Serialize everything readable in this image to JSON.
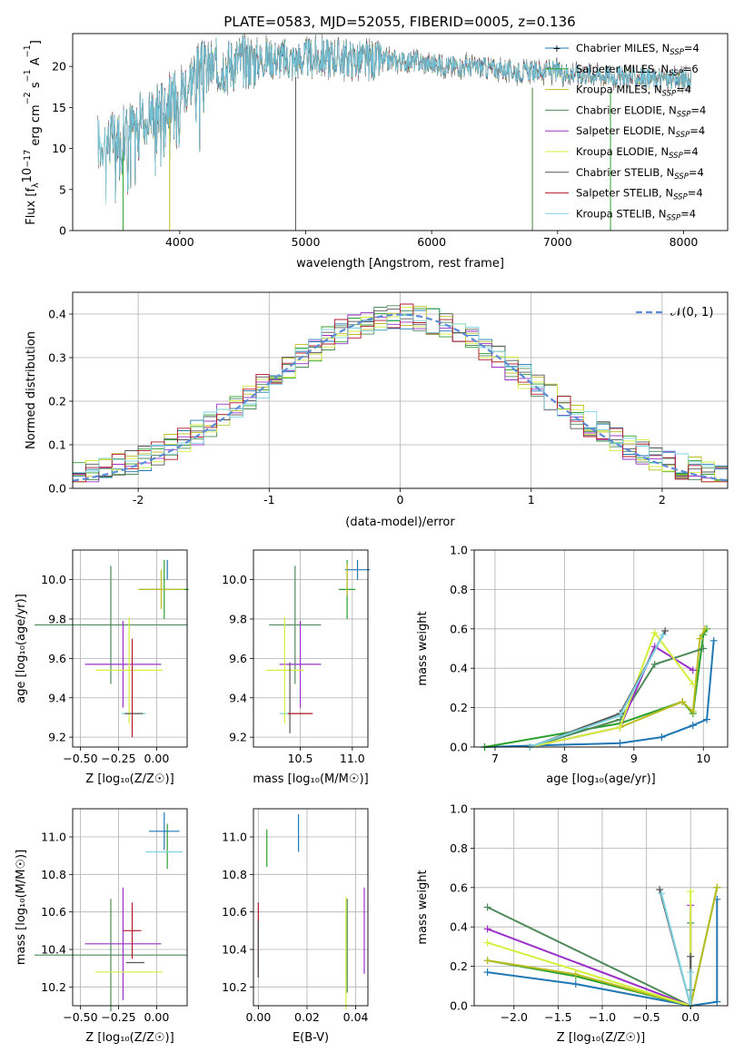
{
  "figure": {
    "title": "PLATE=0583, MJD=52055, FIBERID=0005, z=0.136"
  },
  "models": [
    {
      "name": "Chabrier MILES",
      "nssp": "4",
      "color": "#1f77b4"
    },
    {
      "name": "Salpeter MILES",
      "nssp": "6",
      "color": "#2ca02c"
    },
    {
      "name": "Kroupa MILES",
      "nssp": "4",
      "color": "#bcbd22"
    },
    {
      "name": "Chabrier ELODIE",
      "nssp": "4",
      "color": "#4f8a5a"
    },
    {
      "name": "Salpeter ELODIE",
      "nssp": "4",
      "color": "#9b30c8"
    },
    {
      "name": "Kroupa ELODIE",
      "nssp": "4",
      "color": "#d4ef3c"
    },
    {
      "name": "Chabrier STELIB",
      "nssp": "4",
      "color": "#555555"
    },
    {
      "name": "Salpeter STELIB",
      "nssp": "4",
      "color": "#b2182b"
    },
    {
      "name": "Kroupa STELIB",
      "nssp": "4",
      "color": "#7fd3e0"
    }
  ],
  "chart_data": [
    {
      "id": "spectrum",
      "type": "line",
      "xlabel": "wavelength [Angstrom, rest frame]",
      "ylabel_main": "Flux [f",
      "ylabel_sub1": "λ",
      "ylabel_mid": "10",
      "ylabel_sup1": "−17",
      "ylabel_tail": " erg cm",
      "ylabel_sup2": "−2",
      "ylabel_s": " s",
      "ylabel_sup3": "−1",
      "ylabel_A": " A",
      "ylabel_sup4": "−1",
      "ylabel_end": "]",
      "xlim": [
        3150,
        8350
      ],
      "ylim": [
        0,
        24
      ],
      "xticks": [
        4000,
        5000,
        6000,
        7000,
        8000
      ],
      "yticks": [
        0,
        5,
        10,
        15,
        20
      ],
      "continuum_x": [
        3350,
        3450,
        3550,
        3650,
        3750,
        3850,
        3950,
        4050,
        4150,
        4300,
        4500,
        4700,
        4900,
        5100,
        5300,
        5500,
        5700,
        5900,
        6100,
        6300,
        6500,
        6700,
        6900,
        7100,
        7300,
        7500,
        7700,
        7900
      ],
      "continuum_y": [
        10.8,
        11.0,
        11.6,
        13.2,
        14.2,
        15.2,
        16.0,
        18.0,
        19.6,
        20.0,
        20.6,
        21.0,
        20.7,
        21.1,
        21.0,
        20.6,
        20.7,
        20.5,
        20.1,
        20.0,
        19.7,
        19.3,
        19.5,
        19.2,
        19.0,
        18.8,
        18.6,
        18.4
      ],
      "features": [
        {
          "series": 2,
          "x": 3920,
          "y": 0
        },
        {
          "series": 6,
          "x": 4920,
          "y": 0
        },
        {
          "series": 2,
          "x": 6800,
          "y": 0
        },
        {
          "series": 3,
          "x": 6800,
          "y": 0
        },
        {
          "series": 1,
          "x": 7420,
          "y": 0
        },
        {
          "series": 1,
          "x": 3550,
          "y": 0
        }
      ]
    },
    {
      "id": "residuals",
      "type": "histogram",
      "xlabel": "(data-model)/error",
      "ylabel": "Normed distribution",
      "xlim": [
        -2.5,
        2.5
      ],
      "ylim": [
        0,
        0.45
      ],
      "xticks": [
        -2,
        -1,
        0,
        1,
        2
      ],
      "yticks": [
        0.0,
        0.1,
        0.2,
        0.3,
        0.4
      ],
      "bin_width": 0.1,
      "gaussian_label": "𝒩(0, 1)",
      "gaussian_color": "#5b8bd9"
    },
    {
      "id": "z-age",
      "type": "errorbar",
      "xlabel": "Z [log₁₀(Z/Z☉)]",
      "ylabel": "age  [log₁₀(age/yr)]",
      "xlim": [
        -0.55,
        0.2
      ],
      "ylim": [
        9.15,
        10.15
      ],
      "xticks": [
        -0.5,
        -0.25,
        0.0
      ],
      "xticklabels": [
        "−0.50",
        "−0.25",
        "0.00"
      ],
      "yticks": [
        9.2,
        9.4,
        9.6,
        9.8,
        10.0
      ],
      "points": [
        {
          "series": 1,
          "x": 0.05,
          "xerr": 0.16,
          "y": 9.95,
          "yerr": 0.15
        },
        {
          "series": 8,
          "x": -0.15,
          "xerr": 0.08,
          "y": 9.32,
          "yerr": 0.0
        },
        {
          "series": 3,
          "x": -0.3,
          "xerr": 0.5,
          "y": 9.77,
          "yerr": 0.3
        },
        {
          "series": 4,
          "x": -0.22,
          "xerr": 0.25,
          "y": 9.57,
          "yerr": 0.22
        },
        {
          "series": 5,
          "x": -0.18,
          "xerr": 0.22,
          "y": 9.54,
          "yerr": 0.27
        },
        {
          "series": 6,
          "x": -0.15,
          "xerr": 0.06,
          "y": 9.32,
          "yerr": 0.0
        },
        {
          "series": 7,
          "x": -0.16,
          "xerr": 0.0,
          "y": 9.45,
          "yerr": 0.25
        },
        {
          "series": 0,
          "x": 0.07,
          "xerr": 0.0,
          "y": 10.05,
          "yerr": 0.05
        },
        {
          "series": 2,
          "x": 0.03,
          "xerr": 0.15,
          "y": 9.95,
          "yerr": 0.1
        }
      ]
    },
    {
      "id": "mass-age",
      "type": "errorbar",
      "xlabel": "mass [log₁₀(M/M☉)]",
      "ylabel": "",
      "xlim": [
        10.05,
        11.15
      ],
      "ylim": [
        9.15,
        10.15
      ],
      "xticks": [
        10.5,
        11.0
      ],
      "xticklabels": [
        "10.5",
        "11.0"
      ],
      "yticks": [
        9.2,
        9.4,
        9.6,
        9.8,
        10.0
      ],
      "points": [
        {
          "series": 1,
          "x": 10.95,
          "xerr": 0.08,
          "y": 9.95,
          "yerr": 0.15
        },
        {
          "series": 8,
          "x": 10.42,
          "xerr": 0.12,
          "y": 9.32,
          "yerr": 0.0
        },
        {
          "series": 3,
          "x": 10.45,
          "xerr": 0.25,
          "y": 9.77,
          "yerr": 0.3
        },
        {
          "series": 4,
          "x": 10.5,
          "xerr": 0.2,
          "y": 9.57,
          "yerr": 0.22
        },
        {
          "series": 5,
          "x": 10.35,
          "xerr": 0.18,
          "y": 9.54,
          "yerr": 0.27
        },
        {
          "series": 6,
          "x": 10.4,
          "xerr": 0.0,
          "y": 9.4,
          "yerr": 0.18
        },
        {
          "series": 7,
          "x": 10.5,
          "xerr": 0.12,
          "y": 9.32,
          "yerr": 0.0
        },
        {
          "series": 0,
          "x": 11.05,
          "xerr": 0.12,
          "y": 10.05,
          "yerr": 0.05
        },
        {
          "series": 2,
          "x": 10.95,
          "xerr": 0.0,
          "y": 10.0,
          "yerr": 0.08
        }
      ]
    },
    {
      "id": "weight-age",
      "type": "line",
      "xlabel": "age  [log₁₀(age/yr)]",
      "ylabel": "mass weight",
      "xlim": [
        6.7,
        10.35
      ],
      "ylim": [
        0,
        1.0
      ],
      "xticks": [
        7,
        8,
        9,
        10
      ],
      "yticks": [
        0.0,
        0.2,
        0.4,
        0.6,
        0.8,
        1.0
      ],
      "series": [
        {
          "series": 0,
          "x": [
            6.85,
            8.8,
            9.4,
            9.85,
            10.05,
            10.15
          ],
          "y": [
            0.0,
            0.02,
            0.05,
            0.11,
            0.14,
            0.54
          ]
        },
        {
          "series": 1,
          "x": [
            6.85,
            8.8,
            9.7,
            9.85,
            10.0,
            10.05
          ],
          "y": [
            0.0,
            0.12,
            0.23,
            0.17,
            0.57,
            0.6
          ]
        },
        {
          "series": 2,
          "x": [
            7.5,
            8.8,
            9.7,
            9.85,
            9.95,
            10.02
          ],
          "y": [
            0.0,
            0.1,
            0.23,
            0.18,
            0.55,
            0.6
          ]
        },
        {
          "series": 3,
          "x": [
            7.5,
            8.8,
            9.3,
            10.0
          ],
          "y": [
            0.0,
            0.14,
            0.42,
            0.5
          ]
        },
        {
          "series": 4,
          "x": [
            7.5,
            8.8,
            9.3,
            9.85
          ],
          "y": [
            0.0,
            0.1,
            0.51,
            0.39
          ]
        },
        {
          "series": 5,
          "x": [
            7.5,
            8.8,
            9.3,
            9.85
          ],
          "y": [
            0.0,
            0.1,
            0.58,
            0.32
          ]
        },
        {
          "series": 6,
          "x": [
            7.5,
            8.8,
            9.45
          ],
          "y": [
            0.0,
            0.17,
            0.59
          ]
        },
        {
          "series": 8,
          "x": [
            7.5,
            8.8,
            9.42
          ],
          "y": [
            0.0,
            0.16,
            0.57
          ]
        }
      ]
    },
    {
      "id": "z-mass",
      "type": "errorbar",
      "xlabel": "Z [log₁₀(Z/Z☉)]",
      "ylabel": "mass [log₁₀(M/M☉)]",
      "xlim": [
        -0.55,
        0.2
      ],
      "ylim": [
        10.1,
        11.15
      ],
      "xticks": [
        -0.5,
        -0.25,
        0.0
      ],
      "xticklabels": [
        "−0.50",
        "−0.25",
        "0.00"
      ],
      "yticks": [
        10.2,
        10.4,
        10.6,
        10.8,
        11.0
      ],
      "points": [
        {
          "series": 1,
          "x": 0.07,
          "xerr": 0.0,
          "y": 10.95,
          "yerr": 0.12
        },
        {
          "series": 0,
          "x": 0.05,
          "xerr": 0.1,
          "y": 11.03,
          "yerr": 0.1
        },
        {
          "series": 3,
          "x": -0.3,
          "xerr": 0.5,
          "y": 10.37,
          "yerr": 0.3
        },
        {
          "series": 4,
          "x": -0.22,
          "xerr": 0.25,
          "y": 10.43,
          "yerr": 0.3
        },
        {
          "series": 5,
          "x": -0.18,
          "xerr": 0.22,
          "y": 10.28,
          "yerr": 0.0
        },
        {
          "series": 6,
          "x": -0.14,
          "xerr": 0.06,
          "y": 10.33,
          "yerr": 0.0
        },
        {
          "series": 7,
          "x": -0.16,
          "xerr": 0.06,
          "y": 10.5,
          "yerr": 0.15
        },
        {
          "series": 8,
          "x": 0.05,
          "xerr": 0.12,
          "y": 10.92,
          "yerr": 0.0
        }
      ]
    },
    {
      "id": "ebv-mass",
      "type": "errorbar",
      "xlabel": "E(B-V)",
      "ylabel": "",
      "xlim": [
        -0.002,
        0.045
      ],
      "ylim": [
        10.1,
        11.15
      ],
      "xticks": [
        0.0,
        0.02,
        0.04
      ],
      "xticklabels": [
        "0.00",
        "0.02",
        "0.04"
      ],
      "yticks": [
        10.2,
        10.4,
        10.6,
        10.8,
        11.0
      ],
      "points": [
        {
          "series": 1,
          "x": 0.0035,
          "xerr": 0.0,
          "y": 10.94,
          "yerr": 0.1
        },
        {
          "series": 0,
          "x": 0.0165,
          "xerr": 0.0,
          "y": 11.02,
          "yerr": 0.1
        },
        {
          "series": 8,
          "x": 0.0,
          "xerr": 0.0,
          "y": 10.42,
          "yerr": 0.15
        },
        {
          "series": 7,
          "x": 0.0,
          "xerr": 0.0,
          "y": 10.45,
          "yerr": 0.2
        },
        {
          "series": 5,
          "x": 0.036,
          "xerr": 0.0,
          "y": 10.38,
          "yerr": 0.3
        },
        {
          "series": 3,
          "x": 0.0365,
          "xerr": 0.0,
          "y": 10.42,
          "yerr": 0.25
        },
        {
          "series": 4,
          "x": 0.0435,
          "xerr": 0.0,
          "y": 10.5,
          "yerr": 0.23
        },
        {
          "series": 6,
          "x": 0.0,
          "xerr": 0.0,
          "y": 10.4,
          "yerr": 0.15
        }
      ]
    },
    {
      "id": "weight-z",
      "type": "line",
      "xlabel": "Z [log₁₀(Z/Z☉)]",
      "ylabel": "mass weight",
      "xlim": [
        -2.45,
        0.42
      ],
      "ylim": [
        0,
        1.0
      ],
      "xticks": [
        -2.0,
        -1.5,
        -1.0,
        -0.5,
        0.0
      ],
      "xticklabels": [
        "−2.0",
        "−1.5",
        "−1.0",
        "−0.5",
        "0.0"
      ],
      "yticks": [
        0.0,
        0.2,
        0.4,
        0.6,
        0.8,
        1.0
      ],
      "series": [
        {
          "series": 0,
          "x": [
            -2.3,
            -1.3,
            0.0,
            0.3,
            0.3
          ],
          "y": [
            0.17,
            0.11,
            0.0,
            0.02,
            0.54
          ]
        },
        {
          "series": 1,
          "x": [
            -2.3,
            -1.3,
            0.0,
            0.3
          ],
          "y": [
            0.23,
            0.15,
            0.0,
            0.6
          ]
        },
        {
          "series": 2,
          "x": [
            -2.3,
            -1.3,
            0.0,
            0.3
          ],
          "y": [
            0.23,
            0.16,
            0.0,
            0.6
          ]
        },
        {
          "series": 3,
          "x": [
            -2.3,
            0.0,
            0.0,
            0.0
          ],
          "y": [
            0.5,
            0.0,
            0.08,
            0.42
          ]
        },
        {
          "series": 4,
          "x": [
            -2.3,
            0.0,
            0.0
          ],
          "y": [
            0.39,
            0.0,
            0.51
          ]
        },
        {
          "series": 5,
          "x": [
            -2.3,
            0.0,
            0.0
          ],
          "y": [
            0.32,
            0.0,
            0.58
          ]
        },
        {
          "series": 6,
          "x": [
            -0.35,
            0.0,
            0.0
          ],
          "y": [
            0.59,
            0.0,
            0.25
          ]
        },
        {
          "series": 8,
          "x": [
            -0.33,
            0.0,
            0.0
          ],
          "y": [
            0.57,
            0.0,
            0.17
          ]
        }
      ]
    }
  ]
}
